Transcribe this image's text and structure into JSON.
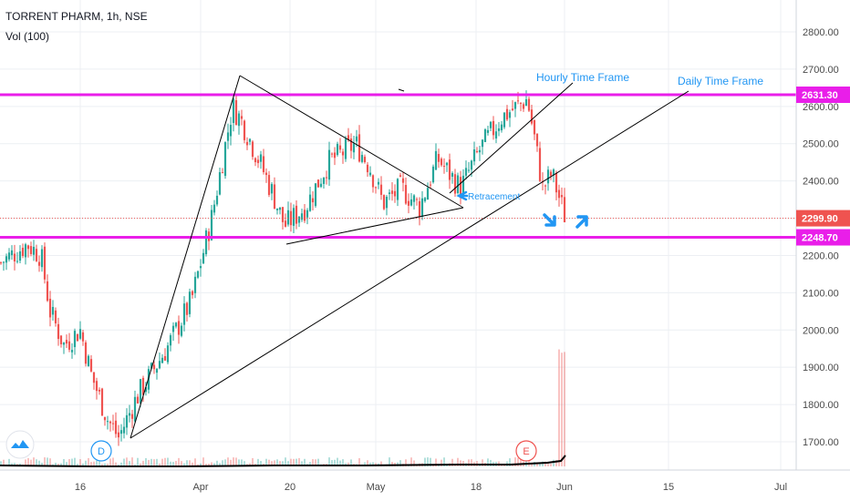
{
  "header": {
    "symbol_line": "TORRENT PHARM, 1h, NSE",
    "indicator_line": "Vol (100)"
  },
  "colors": {
    "up": "#26a69a",
    "down": "#ef5350",
    "level": "#e91ee9",
    "trendline": "#000000",
    "annotation": "#2196f3",
    "price_badge": "#ef5350",
    "grid": "#eceff3"
  },
  "icons": [
    "tradingview-logo-icon",
    "dividend-marker-icon",
    "earnings-marker-icon",
    "arrow-down-icon",
    "arrow-up-icon"
  ],
  "chart_data": {
    "type": "candlestick",
    "title": "TORRENT PHARM, 1h, NSE",
    "y_axis": {
      "ticks": [
        "2800.00",
        "2700.00",
        "2600.00",
        "2500.00",
        "2400.00",
        "2300.00",
        "2200.00",
        "2100.00",
        "2000.00",
        "1900.00",
        "1800.00",
        "1700.00"
      ],
      "range": [
        1630,
        2830
      ]
    },
    "x_axis": {
      "ticks": [
        "16",
        "Apr",
        "20",
        "May",
        "18",
        "Jun",
        "15",
        "Jul"
      ]
    },
    "price_levels": [
      {
        "label": "2631.30",
        "value": 2631.3,
        "style": "solid-thick"
      },
      {
        "label": "2299.90",
        "value": 2299.9,
        "style": "dotted-current"
      },
      {
        "label": "2248.70",
        "value": 2248.7,
        "style": "solid-thick"
      }
    ],
    "annotations": {
      "hourly": "Hourly Time Frame",
      "daily": "Daily Time Frame",
      "retracement": "Retracement"
    },
    "markers": [
      {
        "label": "D",
        "type": "dividend"
      },
      {
        "label": "E",
        "type": "earnings"
      }
    ],
    "price_path": [
      {
        "date": "Mar 03",
        "price": 2180
      },
      {
        "date": "Mar 06",
        "price": 2230
      },
      {
        "date": "Mar 09",
        "price": 2200
      },
      {
        "date": "Mar 11",
        "price": 2050
      },
      {
        "date": "Mar 13",
        "price": 1960
      },
      {
        "date": "Mar 16",
        "price": 2000
      },
      {
        "date": "Mar 18",
        "price": 1880
      },
      {
        "date": "Mar 20",
        "price": 1760
      },
      {
        "date": "Mar 23",
        "price": 1712
      },
      {
        "date": "Mar 25",
        "price": 1820
      },
      {
        "date": "Mar 27",
        "price": 1880
      },
      {
        "date": "Mar 30",
        "price": 1960
      },
      {
        "date": "Apr 01",
        "price": 2080
      },
      {
        "date": "Apr 03",
        "price": 2300
      },
      {
        "date": "Apr 06",
        "price": 2600
      },
      {
        "date": "Apr 08",
        "price": 2560
      },
      {
        "date": "Apr 10",
        "price": 2450
      },
      {
        "date": "Apr 13",
        "price": 2360
      },
      {
        "date": "Apr 16",
        "price": 2280
      },
      {
        "date": "Apr 20",
        "price": 2330
      },
      {
        "date": "Apr 23",
        "price": 2450
      },
      {
        "date": "Apr 27",
        "price": 2500
      },
      {
        "date": "Apr 30",
        "price": 2440
      },
      {
        "date": "May 04",
        "price": 2340
      },
      {
        "date": "May 07",
        "price": 2380
      },
      {
        "date": "May 11",
        "price": 2330
      },
      {
        "date": "May 14",
        "price": 2460
      },
      {
        "date": "May 18",
        "price": 2380
      },
      {
        "date": "May 20",
        "price": 2480
      },
      {
        "date": "May 22",
        "price": 2570
      },
      {
        "date": "May 26",
        "price": 2620
      },
      {
        "date": "May 27",
        "price": 2530
      },
      {
        "date": "May 28",
        "price": 2380
      },
      {
        "date": "May 29",
        "price": 2420
      },
      {
        "date": "Jun 01",
        "price": 2300
      }
    ]
  }
}
